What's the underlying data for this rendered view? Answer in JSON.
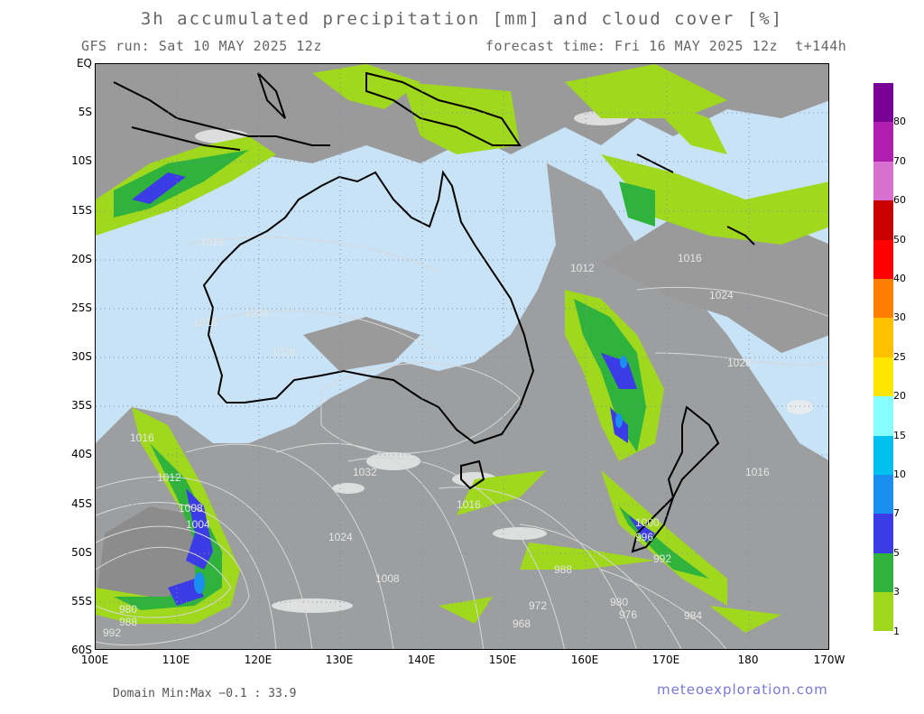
{
  "title": "3h accumulated precipitation [mm] and cloud cover [%]",
  "run_label": "GFS run: Sat 10 MAY 2025 12z",
  "forecast_label": "forecast time: Fri 16 MAY 2025 12z  t+144h",
  "lat_labels": [
    "EQ",
    "5S",
    "10S",
    "15S",
    "20S",
    "25S",
    "30S",
    "35S",
    "40S",
    "45S",
    "50S",
    "55S",
    "60S"
  ],
  "lon_labels": [
    "100E",
    "110E",
    "120E",
    "130E",
    "140E",
    "150E",
    "160E",
    "170E",
    "180",
    "170W"
  ],
  "colorbar": {
    "colors": [
      "#a0d81e",
      "#2fb33c",
      "#3c3ce6",
      "#1a8ff0",
      "#00c0f0",
      "#88ffff",
      "#ffe600",
      "#ffc000",
      "#ff8000",
      "#ff0000",
      "#c80000",
      "#d870d0",
      "#b01eb0",
      "#780096"
    ],
    "labels": [
      "1",
      "3",
      "5",
      "7",
      "10",
      "15",
      "20",
      "25",
      "30",
      "40",
      "50",
      "60",
      "70",
      "80"
    ]
  },
  "isobar_labels": [
    "1016",
    "1016",
    "1016",
    "1024",
    "1024",
    "1028",
    "1028",
    "1032",
    "1024",
    "1016",
    "1016",
    "1016",
    "1012",
    "1008",
    "1004",
    "1008",
    "1000",
    "996",
    "992",
    "988",
    "984",
    "980",
    "980",
    "976",
    "972",
    "968",
    "992",
    "988",
    "1012",
    "1016"
  ],
  "domain_minmax": "Domain Min:Max −0.1 : 33.9",
  "source": "meteoexploration.com"
}
